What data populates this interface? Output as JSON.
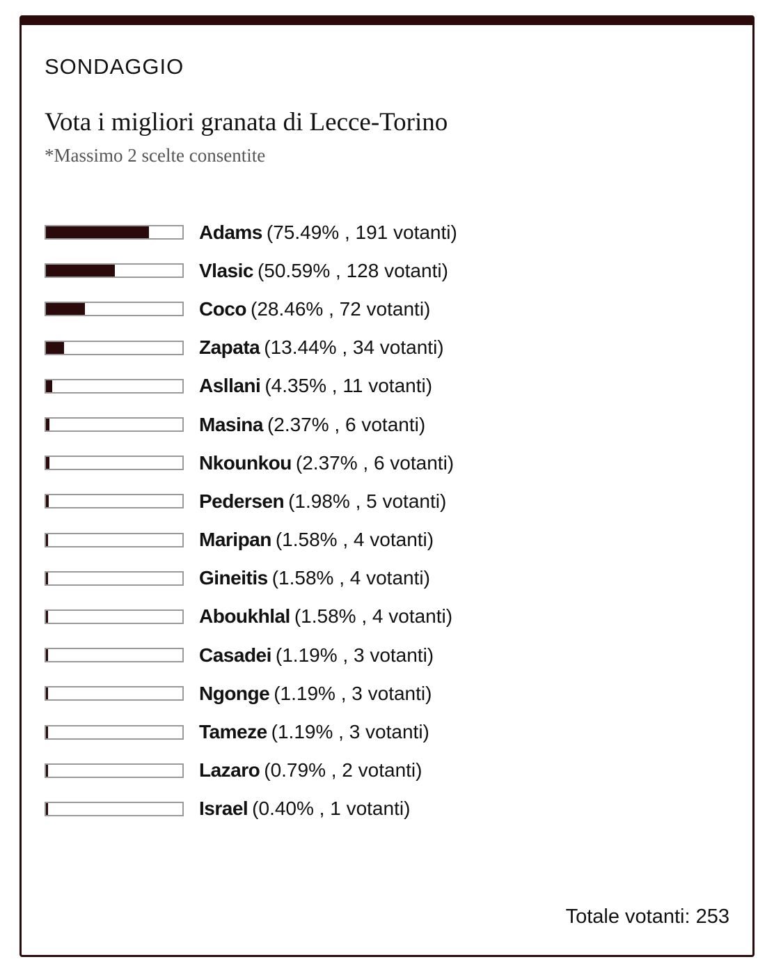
{
  "header": {
    "kicker": "SONDAGGIO",
    "title": "Vota i migliori granata di Lecce-Torino",
    "subtitle": "*Massimo 2 scelte consentite"
  },
  "options": [
    {
      "name": "Adams",
      "percent": 75.49,
      "detail": "(75.49% , 191 votanti)"
    },
    {
      "name": "Vlasic",
      "percent": 50.59,
      "detail": "(50.59% , 128 votanti)"
    },
    {
      "name": "Coco",
      "percent": 28.46,
      "detail": "(28.46% , 72 votanti)"
    },
    {
      "name": "Zapata",
      "percent": 13.44,
      "detail": "(13.44% , 34 votanti)"
    },
    {
      "name": "Asllani",
      "percent": 4.35,
      "detail": "(4.35% , 11 votanti)"
    },
    {
      "name": "Masina",
      "percent": 2.37,
      "detail": "(2.37% , 6 votanti)"
    },
    {
      "name": "Nkounkou",
      "percent": 2.37,
      "detail": "(2.37% , 6 votanti)"
    },
    {
      "name": "Pedersen",
      "percent": 1.98,
      "detail": "(1.98% , 5 votanti)"
    },
    {
      "name": "Maripan",
      "percent": 1.58,
      "detail": "(1.58% , 4 votanti)"
    },
    {
      "name": "Gineitis",
      "percent": 1.58,
      "detail": "(1.58% , 4 votanti)"
    },
    {
      "name": "Aboukhlal",
      "percent": 1.58,
      "detail": "(1.58% , 4 votanti)"
    },
    {
      "name": "Casadei",
      "percent": 1.19,
      "detail": "(1.19% , 3 votanti)"
    },
    {
      "name": "Ngonge",
      "percent": 1.19,
      "detail": "(1.19% , 3 votanti)"
    },
    {
      "name": "Tameze",
      "percent": 1.19,
      "detail": "(1.19% , 3 votanti)"
    },
    {
      "name": "Lazaro",
      "percent": 0.79,
      "detail": "(0.79% , 2 votanti)"
    },
    {
      "name": "Israel",
      "percent": 0.4,
      "detail": "(0.40% , 1 votanti)"
    }
  ],
  "footer": {
    "total": "Totale votanti: 253"
  }
}
